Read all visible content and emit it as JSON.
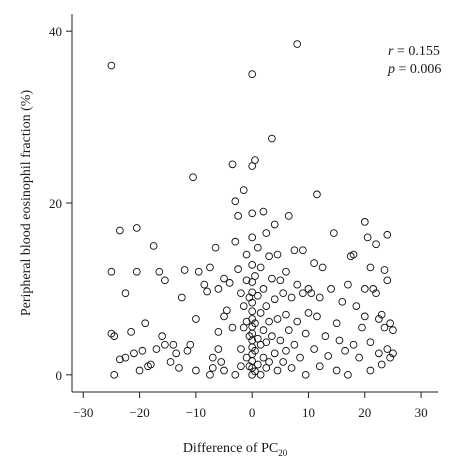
{
  "chart_data": {
    "type": "scatter",
    "title": "",
    "xlabel": {
      "main": "Difference of PC",
      "sub": "20"
    },
    "ylabel": "Peripheral blood eosinophil fraction (%)",
    "xlim": [
      -32,
      33
    ],
    "ylim": [
      -2,
      42
    ],
    "xticks": [
      -30,
      -20,
      -10,
      0,
      10,
      20,
      30
    ],
    "xtick_labels": [
      "−30",
      "−20",
      "−10",
      "0",
      "10",
      "20",
      "30"
    ],
    "yticks": [
      0,
      20,
      40
    ],
    "ytick_labels": [
      "0",
      "20",
      "40"
    ],
    "grid": false,
    "annotations": {
      "r_label": "r",
      "r_value": "= 0.155",
      "p_label": "p",
      "p_value": "= 0.006"
    },
    "series": [
      {
        "marker": "open-circle",
        "points": [
          [
            -25,
            36
          ],
          [
            -25,
            12
          ],
          [
            -25,
            4.8
          ],
          [
            -24.5,
            4.5
          ],
          [
            -24.5,
            0
          ],
          [
            -23.5,
            16.8
          ],
          [
            -23.5,
            1.8
          ],
          [
            -22.5,
            2
          ],
          [
            -22.5,
            9.5
          ],
          [
            -21.5,
            5
          ],
          [
            -21,
            2.5
          ],
          [
            -20.5,
            17.1
          ],
          [
            -20.5,
            12
          ],
          [
            -20,
            0.5
          ],
          [
            -19.5,
            2.8
          ],
          [
            -19,
            6
          ],
          [
            -18.5,
            1
          ],
          [
            -18,
            1.2
          ],
          [
            -17.5,
            15
          ],
          [
            -17,
            3
          ],
          [
            -16.5,
            12
          ],
          [
            -16,
            4.5
          ],
          [
            -15.5,
            3.5
          ],
          [
            -15.5,
            11
          ],
          [
            -14.5,
            1.5
          ],
          [
            -14,
            3.5
          ],
          [
            -13.5,
            2.5
          ],
          [
            -13,
            0.8
          ],
          [
            -12.5,
            9
          ],
          [
            -12,
            12.2
          ],
          [
            -11.5,
            2.8
          ],
          [
            -11,
            3.5
          ],
          [
            -10.5,
            23
          ],
          [
            -10,
            6.5
          ],
          [
            -10,
            0.5
          ],
          [
            -9.5,
            12
          ],
          [
            -8.5,
            10.5
          ],
          [
            -8,
            9.7
          ],
          [
            -7.5,
            12.5
          ],
          [
            -7.5,
            0
          ],
          [
            -7,
            2
          ],
          [
            -7,
            0.8
          ],
          [
            -6.5,
            14.8
          ],
          [
            -6,
            10
          ],
          [
            -6,
            5
          ],
          [
            -6,
            3
          ],
          [
            -5.5,
            1.5
          ],
          [
            -5,
            11.2
          ],
          [
            -5,
            6.8
          ],
          [
            -5,
            0.5
          ],
          [
            -4.5,
            7.5
          ],
          [
            -4,
            10.7
          ],
          [
            -3.5,
            24.5
          ],
          [
            -3.5,
            5.5
          ],
          [
            -3,
            20.2
          ],
          [
            -3,
            15.5
          ],
          [
            -3,
            0
          ],
          [
            -2.5,
            18.5
          ],
          [
            -2.5,
            12.3
          ],
          [
            -2,
            9.5
          ],
          [
            -2,
            3
          ],
          [
            -2,
            1
          ],
          [
            -1.5,
            21.5
          ],
          [
            -1.5,
            8
          ],
          [
            -1.5,
            5.5
          ],
          [
            -1,
            14
          ],
          [
            -1,
            11
          ],
          [
            -1,
            6.2
          ],
          [
            -1,
            2
          ],
          [
            -0.5,
            9
          ],
          [
            -0.5,
            4.5
          ],
          [
            -0.5,
            1
          ],
          [
            0,
            35
          ],
          [
            0,
            24.3
          ],
          [
            0,
            18.8
          ],
          [
            0,
            16
          ],
          [
            0,
            12.8
          ],
          [
            0,
            10.8
          ],
          [
            0,
            9.6
          ],
          [
            0,
            8.4
          ],
          [
            0,
            7.4
          ],
          [
            0,
            6.5
          ],
          [
            0,
            5.6
          ],
          [
            0,
            4.8
          ],
          [
            0,
            4
          ],
          [
            0,
            3.2
          ],
          [
            0,
            2.4
          ],
          [
            0,
            1.6
          ],
          [
            0,
            0.8
          ],
          [
            0,
            0
          ],
          [
            0.5,
            25
          ],
          [
            0.5,
            11.5
          ],
          [
            0.5,
            6
          ],
          [
            0.5,
            2.8
          ],
          [
            0.5,
            0.4
          ],
          [
            1,
            14.8
          ],
          [
            1,
            9.2
          ],
          [
            1,
            4.2
          ],
          [
            1,
            1.2
          ],
          [
            1.5,
            12.5
          ],
          [
            1.5,
            7.2
          ],
          [
            1.5,
            3.5
          ],
          [
            1.5,
            0
          ],
          [
            2,
            19
          ],
          [
            2,
            10
          ],
          [
            2,
            5.2
          ],
          [
            2,
            2
          ],
          [
            2.5,
            16.5
          ],
          [
            2.5,
            8
          ],
          [
            2.5,
            3.8
          ],
          [
            2.5,
            0.8
          ],
          [
            3,
            13.8
          ],
          [
            3,
            6.2
          ],
          [
            3,
            1.5
          ],
          [
            3.5,
            27.5
          ],
          [
            3.5,
            11.2
          ],
          [
            3.5,
            4.5
          ],
          [
            4,
            17.5
          ],
          [
            4,
            8.8
          ],
          [
            4,
            2.5
          ],
          [
            4.5,
            14
          ],
          [
            4.5,
            6.5
          ],
          [
            4.5,
            0.5
          ],
          [
            5,
            11
          ],
          [
            5,
            4
          ],
          [
            5.5,
            9.5
          ],
          [
            5.5,
            1.5
          ],
          [
            6,
            12
          ],
          [
            6,
            7
          ],
          [
            6,
            2.8
          ],
          [
            6.5,
            18.5
          ],
          [
            6.5,
            5.2
          ],
          [
            7,
            9
          ],
          [
            7,
            0.8
          ],
          [
            7.5,
            14.5
          ],
          [
            7.5,
            3.5
          ],
          [
            8,
            38.5
          ],
          [
            8,
            10.5
          ],
          [
            8,
            6.2
          ],
          [
            8.5,
            2
          ],
          [
            9,
            14.5
          ],
          [
            9,
            9.5
          ],
          [
            9.5,
            4.8
          ],
          [
            9.5,
            0
          ],
          [
            10,
            10
          ],
          [
            10,
            7.2
          ],
          [
            10.5,
            9.5
          ],
          [
            11,
            13
          ],
          [
            11,
            3
          ],
          [
            11.5,
            21
          ],
          [
            11.5,
            6.8
          ],
          [
            12,
            9
          ],
          [
            12,
            1
          ],
          [
            12.5,
            12.5
          ],
          [
            13,
            4.5
          ],
          [
            13.5,
            2.2
          ],
          [
            14,
            10
          ],
          [
            14.5,
            16.5
          ],
          [
            15,
            6
          ],
          [
            15,
            0.5
          ],
          [
            15.5,
            4
          ],
          [
            16,
            8.5
          ],
          [
            16.5,
            2.8
          ],
          [
            17,
            10.5
          ],
          [
            17,
            0
          ],
          [
            17.5,
            13.8
          ],
          [
            18,
            3.5
          ],
          [
            18,
            14
          ],
          [
            18.5,
            8
          ],
          [
            19,
            2
          ],
          [
            19.5,
            5.5
          ],
          [
            20,
            17.8
          ],
          [
            20,
            10
          ],
          [
            20,
            6.8
          ],
          [
            20.5,
            16
          ],
          [
            21,
            12.5
          ],
          [
            21,
            3.8
          ],
          [
            21,
            0.5
          ],
          [
            21.5,
            10
          ],
          [
            22,
            9.5
          ],
          [
            22,
            15.2
          ],
          [
            22.5,
            6.5
          ],
          [
            22.5,
            2.5
          ],
          [
            23,
            7
          ],
          [
            23,
            1.2
          ],
          [
            23.5,
            12.2
          ],
          [
            23.5,
            5.5
          ],
          [
            24,
            16.3
          ],
          [
            24,
            11
          ],
          [
            24,
            3
          ],
          [
            24.5,
            6
          ],
          [
            24.5,
            2
          ],
          [
            25,
            2.5
          ],
          [
            25,
            5.2
          ]
        ]
      }
    ]
  }
}
